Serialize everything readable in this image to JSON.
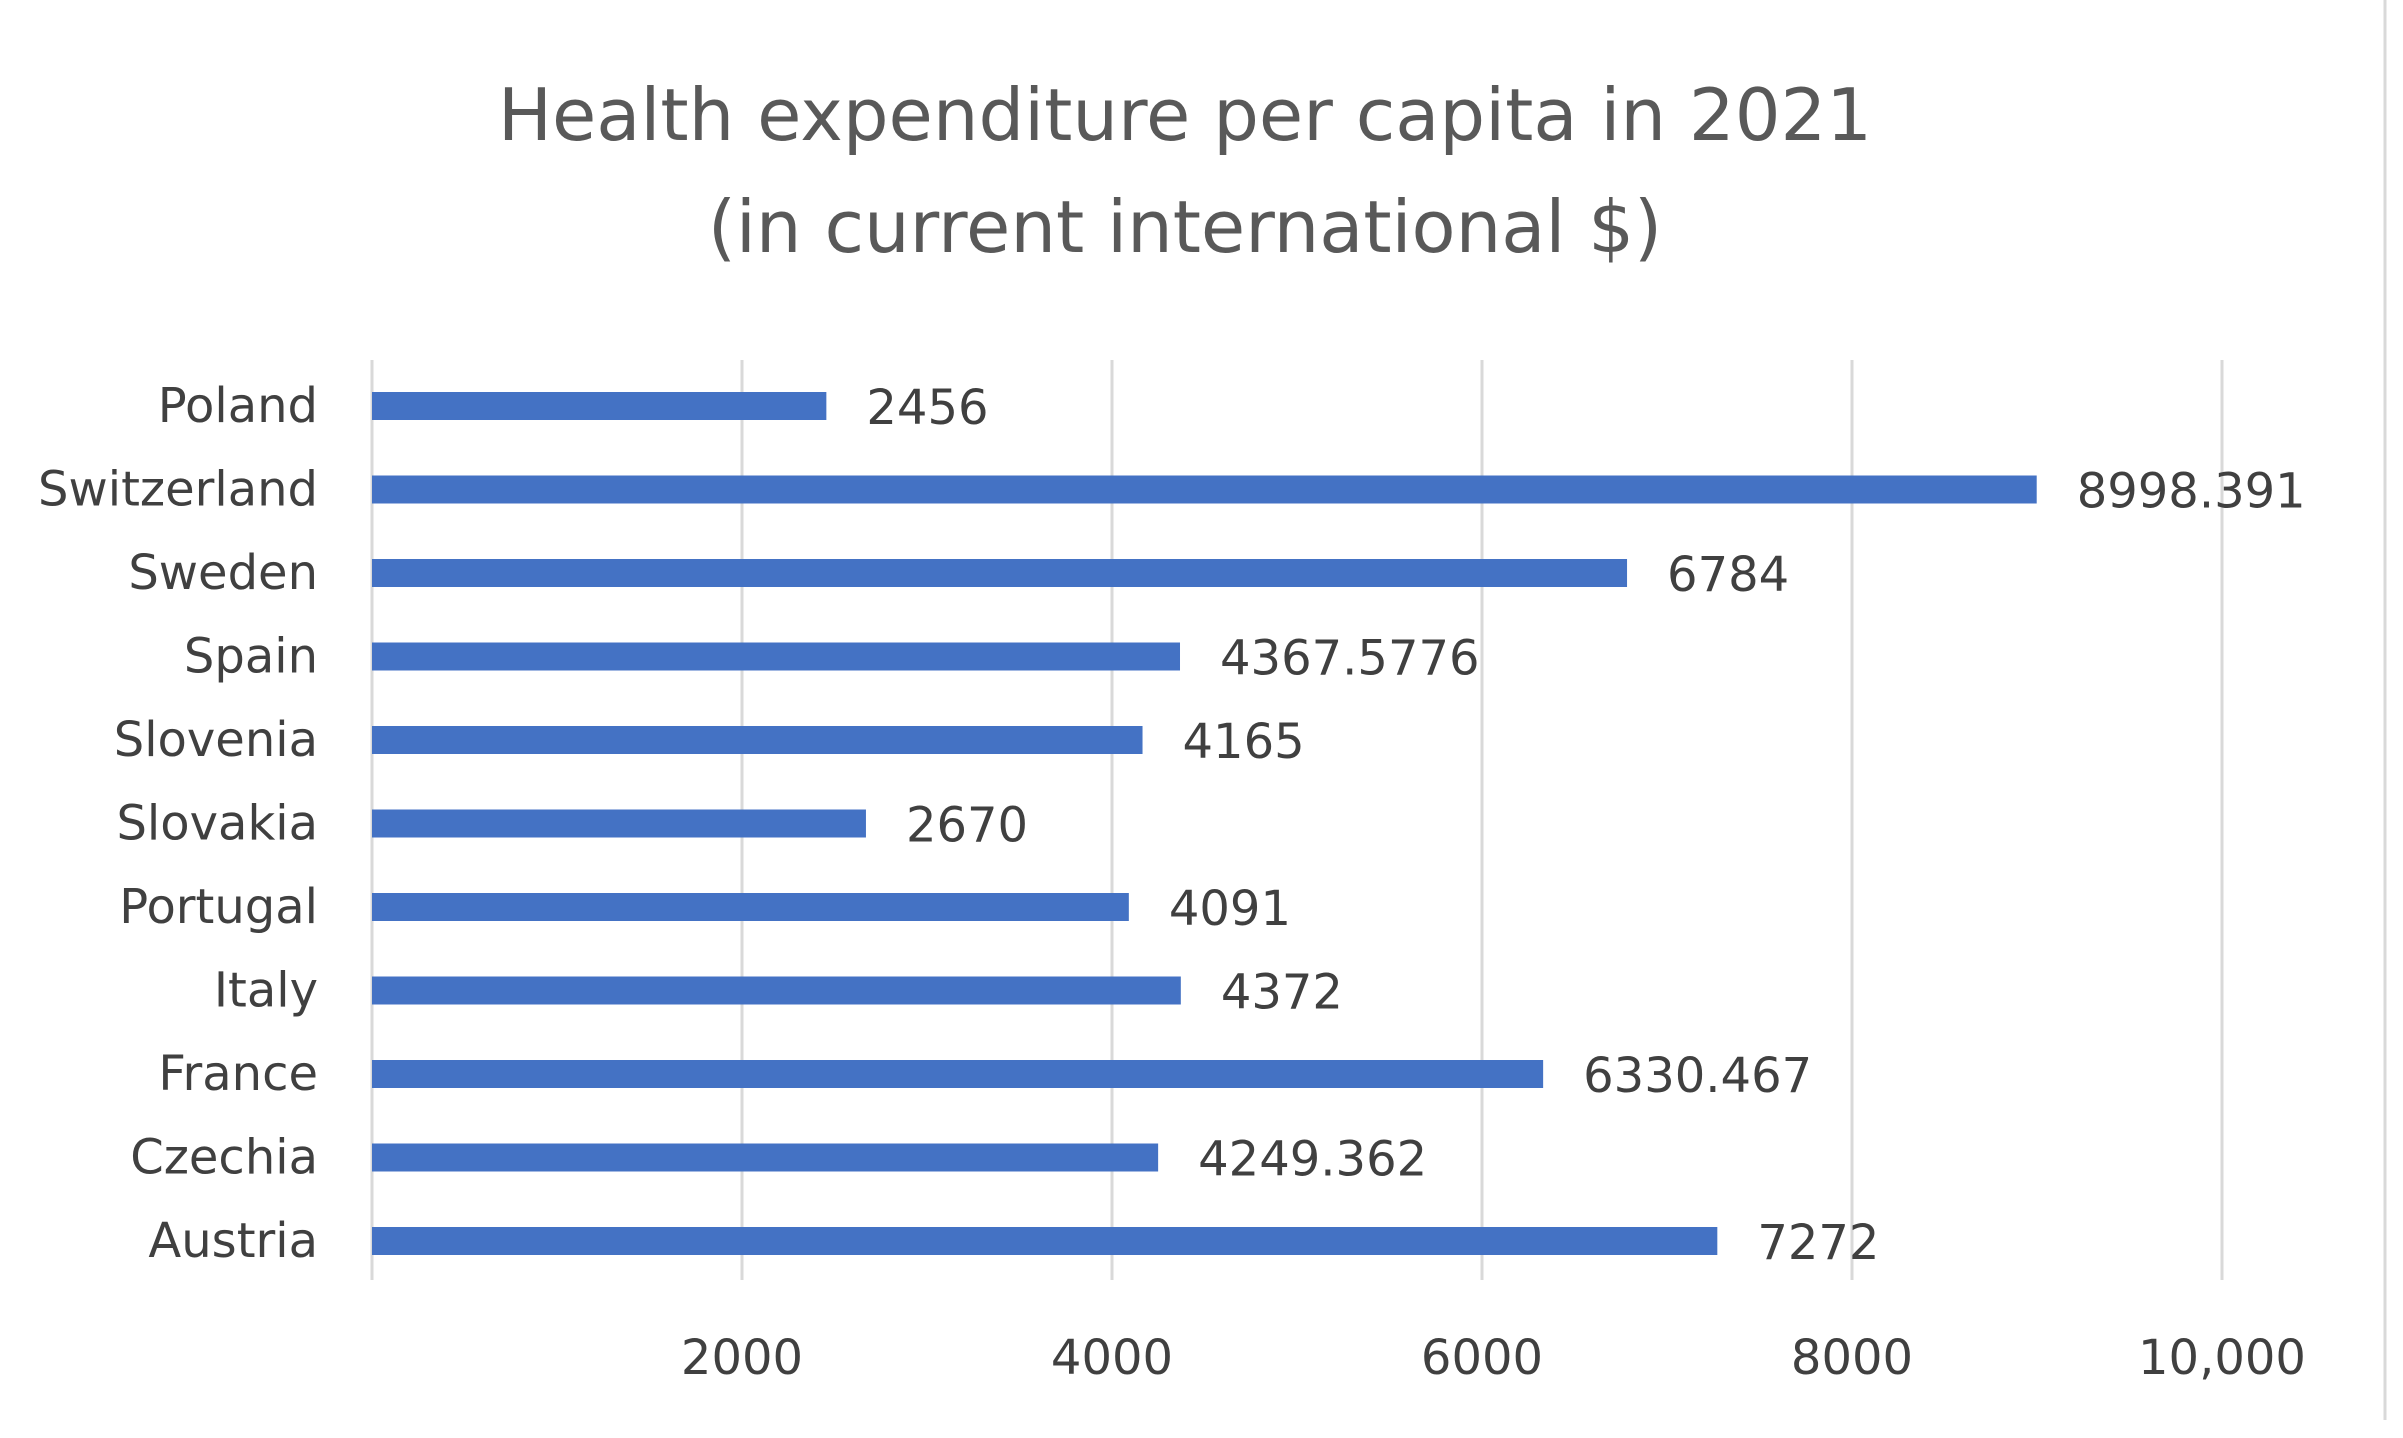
{
  "chart_data": {
    "type": "bar",
    "orientation": "horizontal",
    "title": [
      "Health expenditure per capita in 2021",
      "(in current international $)"
    ],
    "xlabel": "",
    "ylabel": "",
    "categories": [
      "Poland",
      "Switzerland",
      "Sweden",
      "Spain",
      "Slovenia",
      "Slovakia",
      "Portugal",
      "Italy",
      "France",
      "Czechia",
      "Austria"
    ],
    "values": [
      2456,
      8998.391,
      6784,
      4367.5776,
      4165,
      2670,
      4091,
      4372,
      6330.467,
      4249.362,
      7272
    ],
    "data_labels": [
      "2456",
      "8998.391",
      "6784",
      "4367.5776",
      "4165",
      "2670",
      "4091",
      "4372",
      "6330.467",
      "4249.362",
      "7272"
    ],
    "xlim": [
      0,
      10000
    ],
    "xticks": [
      2000,
      4000,
      6000,
      8000,
      10000
    ],
    "xtick_labels": [
      "2000",
      "4000",
      "6000",
      "8000",
      "10,000"
    ],
    "grid": true,
    "legend": "none",
    "colors": {
      "bar": "#4472c4",
      "grid": "#d9d9d9",
      "text": "#404040",
      "title": "#595959"
    }
  }
}
